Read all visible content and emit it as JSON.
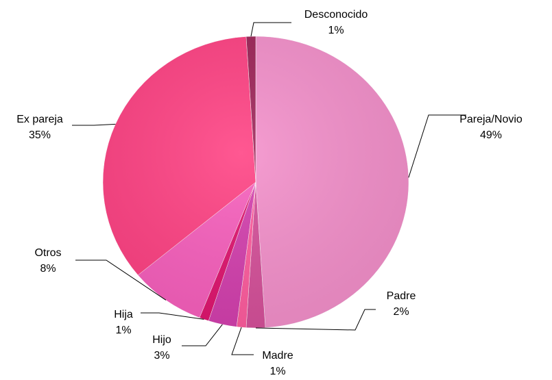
{
  "chart_data": {
    "type": "pie",
    "categories": [
      "Pareja/Novio",
      "Padre",
      "Madre",
      "Hijo",
      "Hija",
      "Otros",
      "Ex pareja",
      "Desconocido"
    ],
    "values": [
      49,
      2,
      1,
      3,
      1,
      8,
      35,
      1
    ],
    "value_labels": [
      "49%",
      "2%",
      "1%",
      "3%",
      "1%",
      "8%",
      "35%",
      "1%"
    ],
    "colors": [
      "#f490cb",
      "#d6509a",
      "#ff5c9e",
      "#d43fae",
      "#e0146f",
      "#f85fbd",
      "#ff4183",
      "#9e2458"
    ]
  }
}
